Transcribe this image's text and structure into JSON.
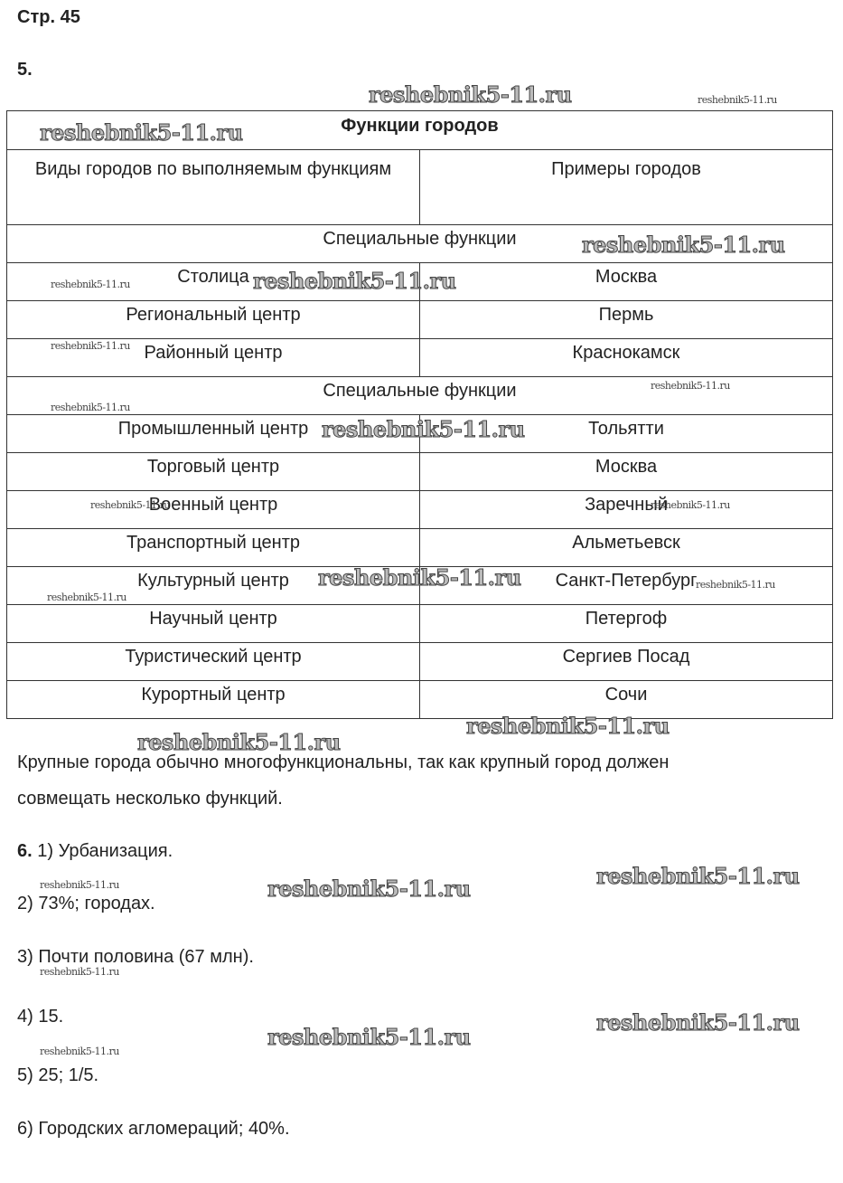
{
  "page_label": "Стр. 45",
  "task5": {
    "number": "5.",
    "table": {
      "title": "Функции городов",
      "col_headers": [
        "Виды городов по выполняемым функциям",
        "Примеры городов"
      ],
      "sections": [
        {
          "label": "Специальные функции",
          "rows": [
            [
              "Столица",
              "Москва"
            ],
            [
              "Региональный центр",
              "Пермь"
            ],
            [
              "Районный центр",
              "Краснокамск"
            ]
          ]
        },
        {
          "label": "Специальные функции",
          "rows": [
            [
              "Промышленный центр",
              "Тольятти"
            ],
            [
              "Торговый центр",
              "Москва"
            ],
            [
              "Военный центр",
              "Заречный"
            ],
            [
              "Транспортный центр",
              "Альметьевск"
            ],
            [
              "Культурный центр",
              "Санкт-Петербург"
            ],
            [
              "Научный центр",
              "Петергоф"
            ],
            [
              "Туристический центр",
              "Сергиев Посад"
            ],
            [
              "Курортный центр",
              "Сочи"
            ]
          ]
        }
      ]
    },
    "conclusion_line1": "Крупные города обычно многофункциональны, так как крупный город должен",
    "conclusion_line2": "совмещать несколько функций."
  },
  "task6": {
    "number": "6.",
    "answers": [
      "1) Урбанизация.",
      "2) 73%; городах.",
      "3) Почти половина (67 млн).",
      "4) 15.",
      "5) 25; 1/5.",
      "6) Городских агломераций; 40%."
    ]
  },
  "watermark": "reshebnik5-11.ru"
}
